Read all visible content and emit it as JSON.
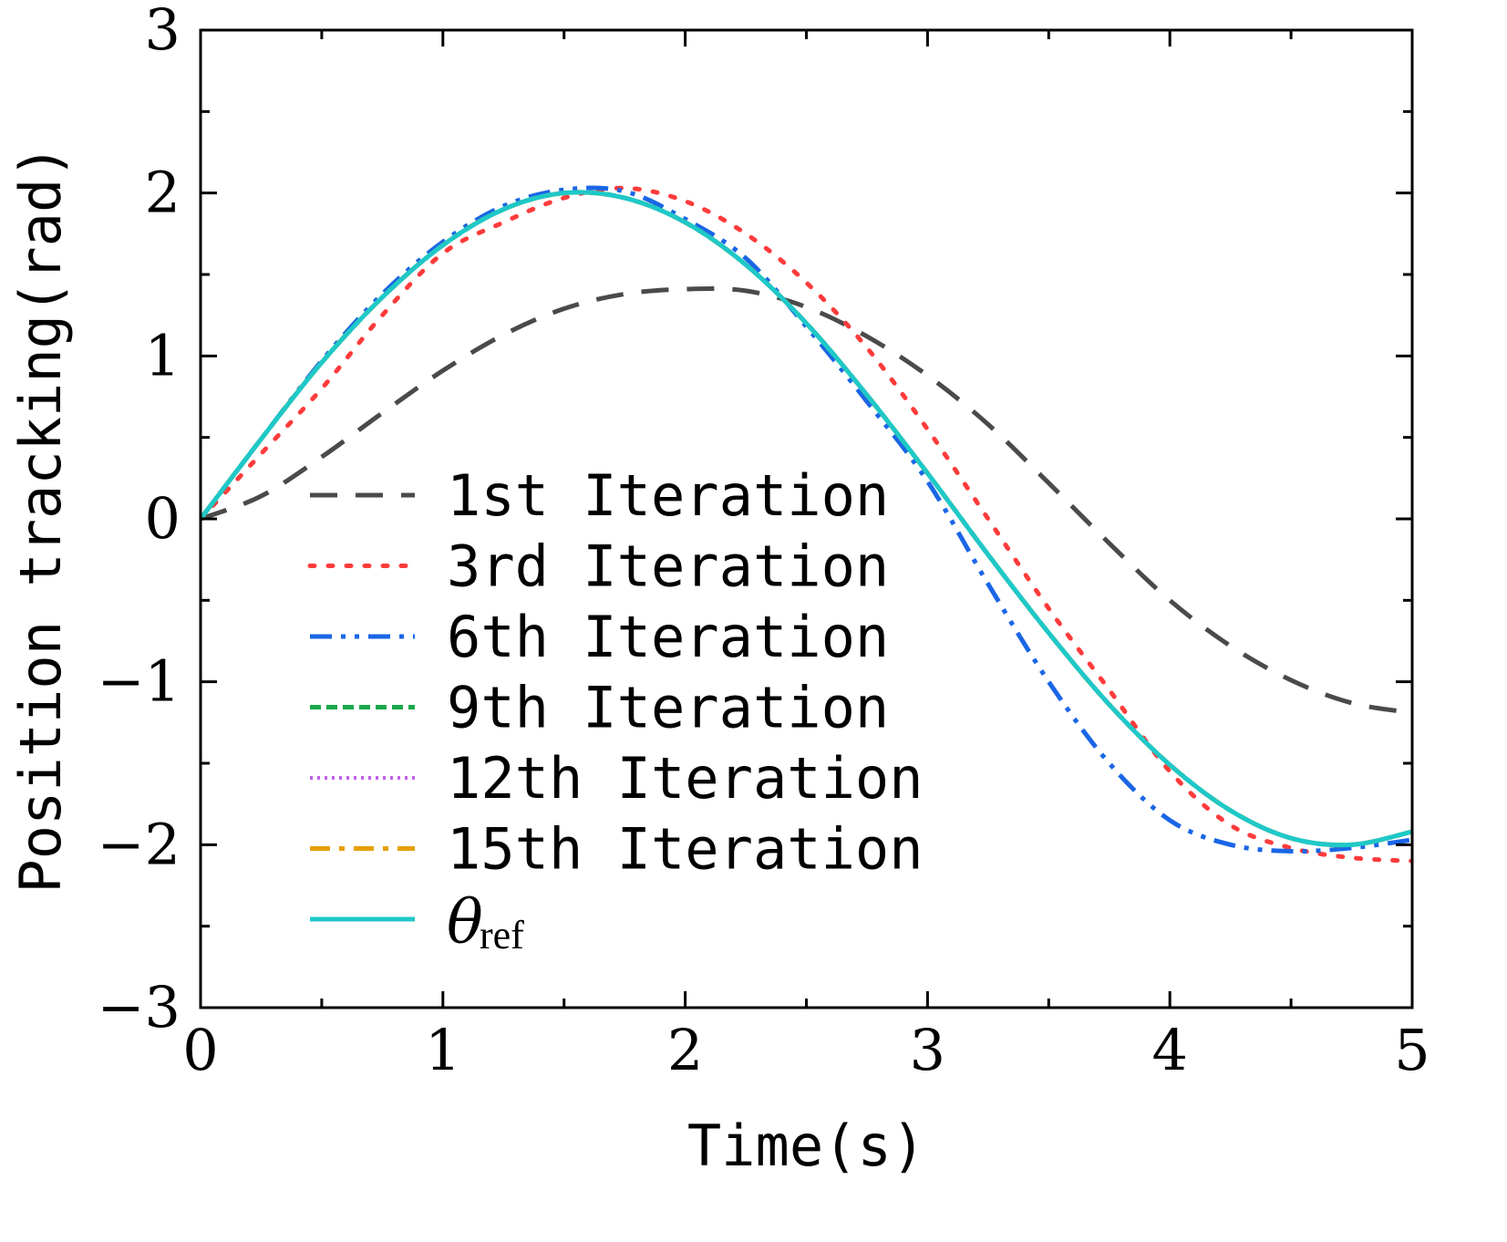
{
  "chart_data": {
    "type": "line",
    "title": "",
    "xlabel": "Time(s)",
    "ylabel": "Position tracking(rad)",
    "xlim": [
      0,
      5
    ],
    "ylim": [
      -3,
      3
    ],
    "xticks": [
      "0",
      "1",
      "2",
      "3",
      "4",
      "5"
    ],
    "yticks": [
      "−3",
      "−2",
      "−1",
      "0",
      "1",
      "2",
      "3"
    ],
    "grid": false,
    "legend_position": "center-left",
    "series": [
      {
        "name": "1st Iteration",
        "color": "#4a4a4a",
        "style": "dashed",
        "x": [
          0,
          0.25,
          0.5,
          0.75,
          1,
          1.25,
          1.5,
          1.75,
          2,
          2.25,
          2.5,
          2.75,
          3,
          3.25,
          3.5,
          3.75,
          4,
          4.25,
          4.5,
          4.75,
          5
        ],
        "y": [
          0,
          0.14,
          0.38,
          0.65,
          0.91,
          1.13,
          1.29,
          1.38,
          1.41,
          1.4,
          1.3,
          1.12,
          0.88,
          0.58,
          0.22,
          -0.15,
          -0.5,
          -0.78,
          -0.99,
          -1.13,
          -1.19
        ]
      },
      {
        "name": "3rd Iteration",
        "color": "#ff3b3b",
        "style": "dotted",
        "x": [
          0,
          0.25,
          0.5,
          0.75,
          1,
          1.25,
          1.5,
          1.75,
          2,
          2.25,
          2.5,
          2.75,
          3,
          3.25,
          3.5,
          3.75,
          4,
          4.25,
          4.5,
          4.75,
          5
        ],
        "y": [
          0,
          0.4,
          0.8,
          1.25,
          1.63,
          1.82,
          1.97,
          2.03,
          1.95,
          1.75,
          1.45,
          1.05,
          0.55,
          0.0,
          -0.55,
          -1.05,
          -1.55,
          -1.88,
          -2.02,
          -2.08,
          -2.1
        ]
      },
      {
        "name": "6th Iteration",
        "color": "#1a66e6",
        "style": "dashdotdot",
        "x": [
          0,
          0.25,
          0.5,
          0.75,
          1,
          1.25,
          1.5,
          1.75,
          2,
          2.25,
          2.5,
          2.75,
          3,
          3.25,
          3.5,
          3.75,
          4,
          4.25,
          4.5,
          4.75,
          5
        ],
        "y": [
          0,
          0.49,
          0.97,
          1.38,
          1.7,
          1.92,
          2.02,
          2.01,
          1.84,
          1.6,
          1.18,
          0.72,
          0.23,
          -0.4,
          -1.0,
          -1.5,
          -1.85,
          -2.0,
          -2.04,
          -2.02,
          -1.97
        ]
      },
      {
        "name": "9th Iteration",
        "color": "#1aa84a",
        "style": "dashed-short",
        "x": [
          0,
          0.25,
          0.5,
          0.75,
          1,
          1.25,
          1.5,
          1.75,
          2,
          2.25,
          2.5,
          2.75,
          3,
          3.25,
          3.5,
          3.75,
          4,
          4.25,
          4.5,
          4.75,
          5
        ],
        "y": [
          0,
          0.49,
          0.96,
          1.36,
          1.68,
          1.9,
          2.0,
          1.97,
          1.82,
          1.56,
          1.2,
          0.76,
          0.28,
          -0.22,
          -0.7,
          -1.14,
          -1.51,
          -1.79,
          -1.96,
          -2.0,
          -1.92
        ]
      },
      {
        "name": "12th Iteration",
        "color": "#c060e8",
        "style": "dotted-fine",
        "x": [
          0,
          0.25,
          0.5,
          0.75,
          1,
          1.25,
          1.5,
          1.75,
          2,
          2.25,
          2.5,
          2.75,
          3,
          3.25,
          3.5,
          3.75,
          4,
          4.25,
          4.5,
          4.75,
          5
        ],
        "y": [
          0,
          0.49,
          0.96,
          1.36,
          1.68,
          1.9,
          2.0,
          1.97,
          1.82,
          1.56,
          1.2,
          0.76,
          0.28,
          -0.22,
          -0.7,
          -1.14,
          -1.51,
          -1.79,
          -1.96,
          -2.0,
          -1.92
        ]
      },
      {
        "name": "15th Iteration",
        "color": "#e6a000",
        "style": "dashdot",
        "x": [
          0,
          0.25,
          0.5,
          0.75,
          1,
          1.25,
          1.5,
          1.75,
          2,
          2.25,
          2.5,
          2.75,
          3,
          3.25,
          3.5,
          3.75,
          4,
          4.25,
          4.5,
          4.75,
          5
        ],
        "y": [
          0,
          0.49,
          0.96,
          1.36,
          1.68,
          1.9,
          2.0,
          1.97,
          1.82,
          1.56,
          1.2,
          0.76,
          0.28,
          -0.22,
          -0.7,
          -1.14,
          -1.51,
          -1.79,
          -1.96,
          -2.0,
          -1.92
        ]
      },
      {
        "name": "θref",
        "symbol": "θ",
        "subscript": "ref",
        "color": "#1fc8c8",
        "style": "solid",
        "x": [
          0,
          0.25,
          0.5,
          0.75,
          1,
          1.25,
          1.5,
          1.75,
          2,
          2.25,
          2.5,
          2.75,
          3,
          3.25,
          3.5,
          3.75,
          4,
          4.25,
          4.5,
          4.75,
          5
        ],
        "y": [
          0,
          0.49,
          0.96,
          1.36,
          1.68,
          1.9,
          2.0,
          1.97,
          1.82,
          1.56,
          1.2,
          0.76,
          0.28,
          -0.22,
          -0.7,
          -1.14,
          -1.51,
          -1.79,
          -1.96,
          -2.0,
          -1.92
        ]
      }
    ]
  }
}
